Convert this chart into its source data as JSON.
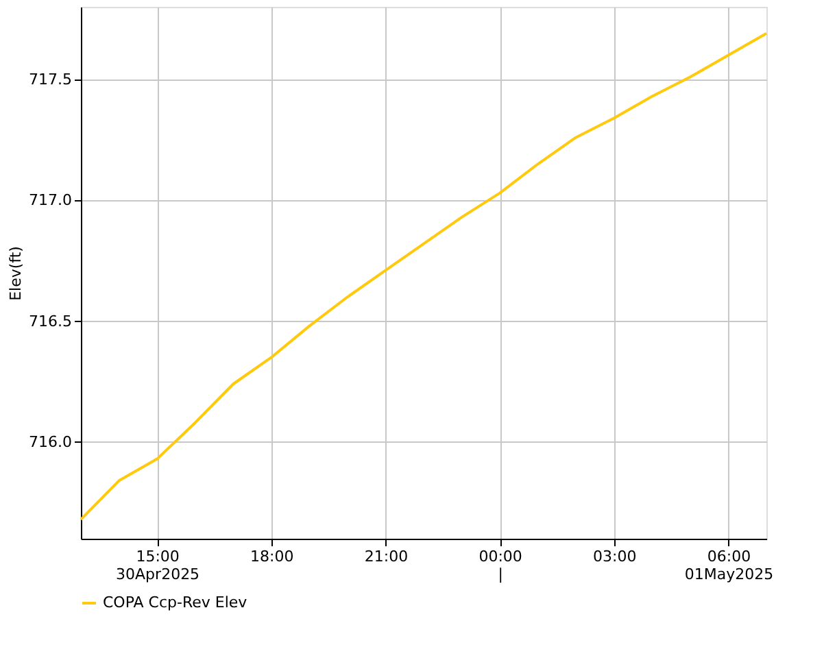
{
  "chart_data": {
    "type": "line",
    "ylabel": "Elev(ft)",
    "x": [
      "2025-04-30T13:00",
      "2025-04-30T14:00",
      "2025-04-30T15:00",
      "2025-04-30T16:00",
      "2025-04-30T17:00",
      "2025-04-30T18:00",
      "2025-04-30T19:00",
      "2025-04-30T20:00",
      "2025-04-30T21:00",
      "2025-04-30T22:00",
      "2025-04-30T23:00",
      "2025-05-01T00:00",
      "2025-05-01T01:00",
      "2025-05-01T02:00",
      "2025-05-01T03:00",
      "2025-05-01T04:00",
      "2025-05-01T05:00",
      "2025-05-01T06:00",
      "2025-05-01T07:00"
    ],
    "series": [
      {
        "name": "COPA Ccp-Rev Elev",
        "color": "#ffc90e",
        "values": [
          715.68,
          715.84,
          715.93,
          716.08,
          716.24,
          716.35,
          716.48,
          716.6,
          716.71,
          716.82,
          716.93,
          717.03,
          717.15,
          717.26,
          717.34,
          717.43,
          717.51,
          717.6,
          717.69
        ]
      }
    ],
    "xlim": [
      "2025-04-30T13:00",
      "2025-05-01T07:00"
    ],
    "xticks": [
      {
        "value": "2025-04-30T15:00",
        "label": "15:00\n30Apr2025"
      },
      {
        "value": "2025-04-30T18:00",
        "label": "18:00"
      },
      {
        "value": "2025-04-30T21:00",
        "label": "21:00"
      },
      {
        "value": "2025-05-01T00:00",
        "label": "00:00\n|"
      },
      {
        "value": "2025-05-01T03:00",
        "label": "03:00"
      },
      {
        "value": "2025-05-01T06:00",
        "label": "06:00\n01May2025"
      }
    ],
    "ylim": [
      715.6,
      717.8
    ],
    "yticks": [
      {
        "value": 716.0,
        "label": "716.0"
      },
      {
        "value": 716.5,
        "label": "716.5"
      },
      {
        "value": 717.0,
        "label": "717.0"
      },
      {
        "value": 717.5,
        "label": "717.5"
      }
    ],
    "grid": true,
    "legend": "bottom left",
    "marker": "none",
    "line_style": "solid"
  }
}
